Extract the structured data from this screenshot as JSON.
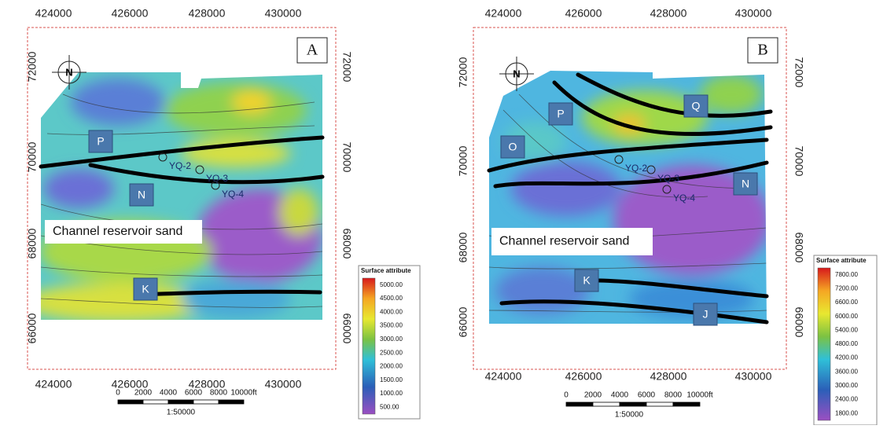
{
  "panels": [
    {
      "label": "A",
      "x_ticks": [
        "424000",
        "426000",
        "428000",
        "430000"
      ],
      "y_ticks": [
        "72000",
        "70000",
        "68000",
        "66000"
      ],
      "zones": [
        "P",
        "N",
        "K"
      ],
      "wells": [
        "YQ-2",
        "YQ-3",
        "YQ-4"
      ],
      "annotation": "Channel reservoir sand",
      "legend": {
        "title": "Surface attribute",
        "labels": [
          "5000.00",
          "4500.00",
          "4000.00",
          "3500.00",
          "3000.00",
          "2500.00",
          "2000.00",
          "1500.00",
          "1000.00",
          "500.00"
        ]
      },
      "scale_bar": {
        "labels": [
          "0",
          "2000",
          "4000",
          "6000",
          "8000",
          "10000ft"
        ],
        "ratio": "1:50000"
      }
    },
    {
      "label": "B",
      "x_ticks": [
        "424000",
        "426000",
        "428000",
        "430000"
      ],
      "y_ticks": [
        "72000",
        "70000",
        "68000",
        "66000"
      ],
      "zones": [
        "P",
        "Q",
        "O",
        "N",
        "K",
        "J"
      ],
      "wells": [
        "YQ-2",
        "YQ-3",
        "YQ-4"
      ],
      "annotation": "Channel reservoir sand",
      "legend": {
        "title": "Surface attribute",
        "labels": [
          "7800.00",
          "7200.00",
          "6600.00",
          "6000.00",
          "5400.00",
          "4800.00",
          "4200.00",
          "3600.00",
          "3000.00",
          "2400.00",
          "1800.00"
        ]
      },
      "scale_bar": {
        "labels": [
          "0",
          "2000",
          "4000",
          "6000",
          "8000",
          "10000ft"
        ],
        "ratio": "1:50000"
      }
    }
  ]
}
